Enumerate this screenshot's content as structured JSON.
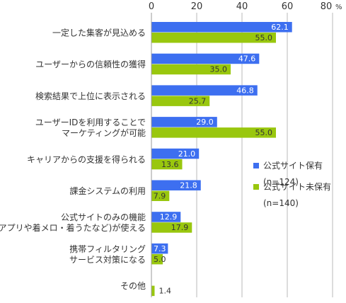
{
  "chart_data": {
    "type": "bar",
    "orientation": "horizontal",
    "categories": [
      [
        "一定した集客が見込める"
      ],
      [
        "ユーザーからの信頼性の獲得"
      ],
      [
        "検索結果で上位に表示される"
      ],
      [
        "ユーザーIDを利用することで",
        "マーケティングが可能"
      ],
      [
        "キャリアからの支援を得られる"
      ],
      [
        "課金システムの利用"
      ],
      [
        "公式サイトのみの機能",
        "(アプリや着メロ・着うたなど)が使える"
      ],
      [
        "携帯フィルタリング",
        "サービス対策になる"
      ],
      [
        "その他"
      ]
    ],
    "series": [
      {
        "name": "公式サイト保有",
        "sample_note": "(n=124)",
        "color": "#3d6ff0",
        "values": [
          62.1,
          47.6,
          46.8,
          29.0,
          21.0,
          21.8,
          12.9,
          7.3,
          null
        ]
      },
      {
        "name": "公式サイト未保有",
        "sample_note": "(n=140)",
        "color": "#99c70e",
        "values": [
          55.0,
          35.0,
          25.7,
          55.0,
          13.6,
          7.9,
          17.9,
          5.0,
          1.4
        ]
      }
    ],
    "value_labels": [
      [
        "62.1",
        "47.6",
        "46.8",
        "29.0",
        "21.0",
        "21.8",
        "12.9",
        "7.3",
        ""
      ],
      [
        "55.0",
        "35.0",
        "25.7",
        "55.0",
        "13.6",
        "7.9",
        "17.9",
        "5.0",
        "1.4"
      ]
    ],
    "xlim": [
      0,
      80
    ],
    "xticks": [
      "0",
      "20",
      "40",
      "60",
      "80"
    ],
    "x_unit": "%",
    "grid": true,
    "legend_position": "right"
  }
}
